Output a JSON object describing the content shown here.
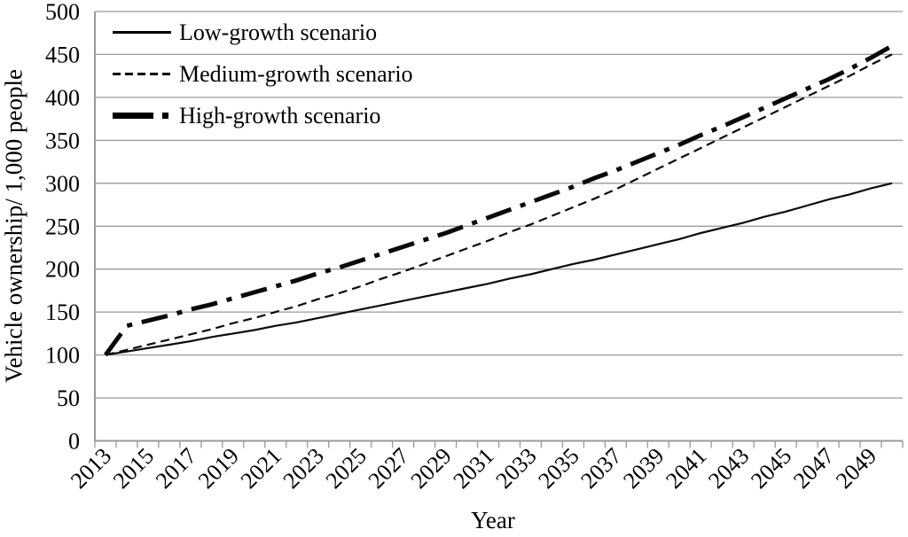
{
  "figure": {
    "background": "#ffffff",
    "text_color": "#000000",
    "grid_color": "#9a9a9a",
    "line_color": "#0a0a0a"
  },
  "chart_data": {
    "type": "line",
    "title": "",
    "xlabel": "Year",
    "ylabel": "Vehicle ownership/ 1,000 people",
    "ylim": [
      0,
      500
    ],
    "y_ticks": [
      0,
      50,
      100,
      150,
      200,
      250,
      300,
      350,
      400,
      450,
      500
    ],
    "x_tick_labels": [
      "2013",
      "2015",
      "2017",
      "2019",
      "2021",
      "2023",
      "2025",
      "2027",
      "2029",
      "2031",
      "2033",
      "2035",
      "2037",
      "2039",
      "2041",
      "2043",
      "2045",
      "2047",
      "2049"
    ],
    "categories": [
      2013,
      2014,
      2015,
      2016,
      2017,
      2018,
      2019,
      2020,
      2021,
      2022,
      2023,
      2024,
      2025,
      2026,
      2027,
      2028,
      2029,
      2030,
      2031,
      2032,
      2033,
      2034,
      2035,
      2036,
      2037,
      2038,
      2039,
      2040,
      2041,
      2042,
      2043,
      2044,
      2045,
      2046,
      2047,
      2048,
      2049,
      2050
    ],
    "grid": "horizontal",
    "legend_position": "top-left-inside",
    "series": [
      {
        "name": "Low-growth scenario",
        "style": "solid",
        "values": [
          100,
          104,
          108,
          112,
          116,
          121,
          125,
          129,
          134,
          138,
          143,
          148,
          153,
          158,
          163,
          168,
          173,
          178,
          183,
          189,
          194,
          200,
          206,
          211,
          217,
          223,
          229,
          235,
          242,
          248,
          254,
          261,
          267,
          274,
          281,
          287,
          294,
          300
        ]
      },
      {
        "name": "Medium-growth scenario",
        "style": "dashed",
        "values": [
          100,
          106,
          112,
          118,
          124,
          130,
          137,
          143,
          150,
          157,
          165,
          172,
          180,
          189,
          197,
          206,
          215,
          224,
          233,
          243,
          252,
          262,
          272,
          282,
          293,
          305,
          317,
          329,
          341,
          353,
          365,
          377,
          389,
          401,
          413,
          425,
          438,
          450
        ]
      },
      {
        "name": "High-growth scenario",
        "style": "thick-dash-dot",
        "values": [
          100,
          134,
          140,
          146,
          153,
          159,
          166,
          173,
          180,
          187,
          195,
          202,
          210,
          218,
          226,
          234,
          242,
          251,
          260,
          269,
          278,
          287,
          296,
          306,
          315,
          325,
          335,
          345,
          356,
          366,
          377,
          388,
          399,
          410,
          421,
          433,
          446,
          460
        ]
      }
    ]
  }
}
